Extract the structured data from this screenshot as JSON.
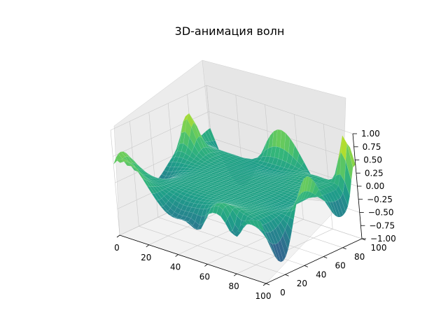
{
  "chart_data": {
    "type": "surface",
    "title": "3D-анимация волн",
    "colormap": "viridis",
    "xlabel": "",
    "ylabel": "",
    "zlabel": "",
    "xlim": [
      0,
      100
    ],
    "ylim": [
      0,
      100
    ],
    "zlim": [
      -1,
      1
    ],
    "x_ticks": [
      "0",
      "20",
      "40",
      "60",
      "80",
      "100"
    ],
    "y_ticks": [
      "0",
      "20",
      "40",
      "60",
      "80",
      "100"
    ],
    "z_ticks": [
      "−1.00",
      "−0.75",
      "−0.50",
      "−0.25",
      "0.00",
      "0.25",
      "0.50",
      "0.75",
      "1.00"
    ],
    "grid": true,
    "surface_description": "Traveling waves concentrated along the four edges of a 100×100 grid; center is flat near 0; sharp peaks near 1.0 at the far-right corner and along the left-back edge; troughs near -0.5 along the front-right edge."
  }
}
